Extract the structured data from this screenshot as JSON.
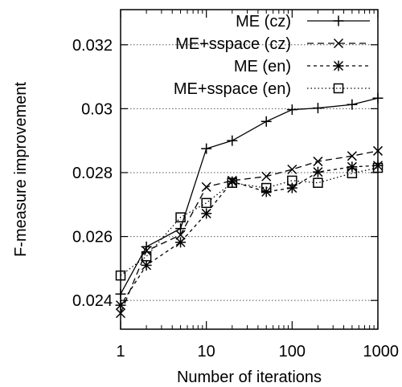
{
  "chart_data": {
    "type": "line",
    "xlabel": "Number of iterations",
    "ylabel": "F-measure improvement",
    "x_scale": "log",
    "xlim": [
      1,
      1000
    ],
    "ylim": [
      0.0231,
      0.0331
    ],
    "x_ticks": [
      1,
      10,
      100,
      1000
    ],
    "x_tick_labels": [
      "1",
      "10",
      "100",
      "1000"
    ],
    "y_ticks": [
      0.024,
      0.026,
      0.028,
      0.03,
      0.032
    ],
    "y_tick_labels": [
      "0.024",
      "0.026",
      "0.028",
      "0.03",
      "0.032"
    ],
    "grid": {
      "horizontal": true,
      "style": "dotted"
    },
    "legend_position": "top-right",
    "x": [
      1,
      2,
      5,
      10,
      20,
      50,
      100,
      200,
      500,
      1000
    ],
    "series": [
      {
        "name": "ME (cz)",
        "marker": "plus",
        "dash": "solid",
        "values": [
          0.0242,
          0.02568,
          0.02625,
          0.02875,
          0.029,
          0.0296,
          0.02997,
          0.03002,
          0.03013,
          0.03033
        ]
      },
      {
        "name": "ME+sspace (cz)",
        "marker": "cross",
        "dash": "dashed",
        "values": [
          0.0236,
          0.02555,
          0.02605,
          0.02755,
          0.02775,
          0.02788,
          0.0281,
          0.02835,
          0.02852,
          0.02868
        ]
      },
      {
        "name": "ME (en)",
        "marker": "asterisk",
        "dash": "short-dashed",
        "values": [
          0.02385,
          0.0251,
          0.02582,
          0.02672,
          0.02772,
          0.0274,
          0.02752,
          0.02802,
          0.02818,
          0.02822
        ]
      },
      {
        "name": "ME+sspace (en)",
        "marker": "square",
        "dash": "dotted",
        "values": [
          0.02478,
          0.02538,
          0.0266,
          0.02705,
          0.02768,
          0.02752,
          0.02775,
          0.02768,
          0.02798,
          0.02815
        ]
      }
    ]
  }
}
